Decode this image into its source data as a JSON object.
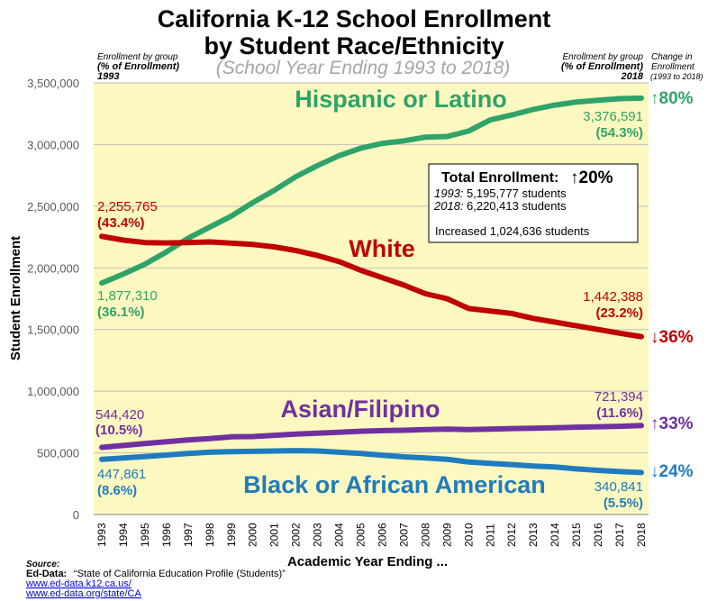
{
  "chart_data": {
    "type": "line",
    "title_line1": "California K-12 School Enrollment",
    "title_line2": "by Student Race/Ethnicity",
    "subtitle": "(School Year Ending 1993 to 2018)",
    "xlabel": "Academic Year Ending ...",
    "ylabel": "Student Enrollment",
    "ylim": [
      0,
      3500000
    ],
    "yticks": [
      "0",
      "500,000",
      "1,000,000",
      "1,500,000",
      "2,000,000",
      "2,500,000",
      "3,000,000",
      "3,500,000"
    ],
    "ytick_values": [
      0,
      500000,
      1000000,
      1500000,
      2000000,
      2500000,
      3000000,
      3500000
    ],
    "x": [
      "1993",
      "1994",
      "1995",
      "1996",
      "1997",
      "1998",
      "1999",
      "2000",
      "2001",
      "2002",
      "2003",
      "2004",
      "2005",
      "2006",
      "2007",
      "2008",
      "2009",
      "2010",
      "2011",
      "2012",
      "2013",
      "2014",
      "2015",
      "2016",
      "2017",
      "2018"
    ],
    "series": [
      {
        "name": "Hispanic or Latino",
        "color": "#2ea36a",
        "values": [
          1877310,
          1950000,
          2030000,
          2130000,
          2240000,
          2330000,
          2420000,
          2530000,
          2630000,
          2740000,
          2830000,
          2910000,
          2970000,
          3010000,
          3030000,
          3060000,
          3065000,
          3110000,
          3200000,
          3240000,
          3285000,
          3320000,
          3345000,
          3360000,
          3372000,
          3376591
        ],
        "start_value": "1,877,310",
        "start_pct": "(36.1%)",
        "end_value": "3,376,591",
        "end_pct": "(54.3%)",
        "change": "↑80%"
      },
      {
        "name": "White",
        "color": "#c00000",
        "values": [
          2255765,
          2225000,
          2205000,
          2202000,
          2205000,
          2210000,
          2200000,
          2190000,
          2170000,
          2140000,
          2100000,
          2050000,
          1980000,
          1920000,
          1860000,
          1790000,
          1750000,
          1670000,
          1650000,
          1630000,
          1590000,
          1560000,
          1530000,
          1500000,
          1470000,
          1442388
        ],
        "start_value": "2,255,765",
        "start_pct": "(43.4%)",
        "end_value": "1,442,388",
        "end_pct": "(23.2%)",
        "change": "↓36%"
      },
      {
        "name": "Asian/Filipino",
        "color": "#7030a0",
        "values": [
          544420,
          560000,
          575000,
          590000,
          605000,
          615000,
          630000,
          632000,
          642000,
          652000,
          660000,
          667000,
          675000,
          680000,
          683000,
          688000,
          693000,
          688000,
          692000,
          697000,
          700000,
          703000,
          708000,
          712000,
          715000,
          721394
        ],
        "start_value": "544,420",
        "start_pct": "(10.5%)",
        "end_value": "721,394",
        "end_pct": "(11.6%)",
        "change": "↑33%"
      },
      {
        "name": "Black or African American",
        "color": "#1f7bbf",
        "values": [
          447861,
          458000,
          470000,
          482000,
          495000,
          505000,
          510000,
          512000,
          515000,
          518000,
          515000,
          505000,
          495000,
          480000,
          468000,
          458000,
          448000,
          425000,
          415000,
          405000,
          393000,
          385000,
          370000,
          358000,
          348000,
          340841
        ],
        "start_value": "447,861",
        "start_pct": "(8.6%)",
        "end_value": "340,841",
        "end_pct": "(5.5%)",
        "change": "↓24%"
      }
    ],
    "left_header": [
      "Enrollment by group",
      "(% of Enrollment)",
      "1993"
    ],
    "right_header": [
      "Enrollment by group",
      "(% of Enrollment)",
      "2018"
    ],
    "change_header": [
      "Change in",
      "Enrollment",
      "(1993 to 2018)"
    ],
    "total_box": {
      "title": "Total Enrollment:",
      "change": "↑20%",
      "line1_year": "1993:",
      "line1_text": "5,195,777 students",
      "line2_year": "2018:",
      "line2_text": "6,220,413 students",
      "line3": "Increased 1,024,636 students"
    },
    "source": {
      "heading": "Source:",
      "org": "Ed-Data:",
      "desc": "“State of California Education Profile (Students)”",
      "link1": "www.ed-data.k12.ca.us/",
      "link2": "www.ed-data.org/state/CA"
    }
  },
  "colors": {
    "plot_background": "#fdf8c0",
    "grid": "#bfbfbf"
  }
}
